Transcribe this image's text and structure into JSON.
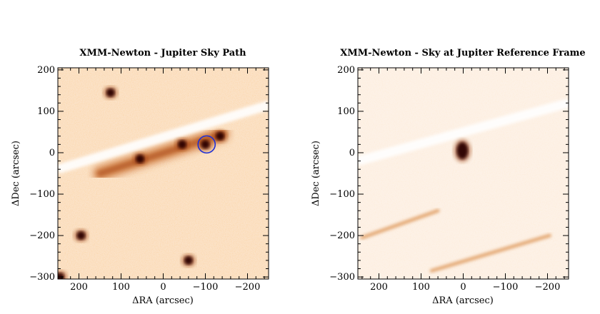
{
  "chart_data": [
    {
      "type": "heatmap",
      "title": "XMM-Newton - Jupiter Sky Path",
      "xlabel": "ΔRA (arcsec)",
      "ylabel": "ΔDec (arcsec)",
      "xlim": [
        250,
        -250
      ],
      "ylim": [
        -305,
        205
      ],
      "x_reversed": true,
      "xticks": [
        200,
        100,
        0,
        -100,
        -200
      ],
      "yticks": [
        200,
        100,
        0,
        -100,
        -200,
        -300
      ],
      "colormap": [
        "#ffffff",
        "#f7c79a",
        "#d9782e",
        "#6b1d05",
        "#200000"
      ],
      "jupiter_path": {
        "x1": 250,
        "y1": -40,
        "x2": -250,
        "y2": 115
      },
      "source_streak": {
        "x1": 150,
        "y1": -50,
        "x2": -140,
        "y2": 45
      },
      "sources": [
        {
          "x": 195,
          "y": -200
        },
        {
          "x": 125,
          "y": 145
        },
        {
          "x": -60,
          "y": -260
        },
        {
          "x": 55,
          "y": -15
        },
        {
          "x": -45,
          "y": 20
        },
        {
          "x": -100,
          "y": 20
        },
        {
          "x": -135,
          "y": 40
        },
        {
          "x": 245,
          "y": -300
        }
      ],
      "marker": {
        "x": -103,
        "y": 20,
        "r": 12,
        "color": "#1e2fd6"
      }
    },
    {
      "type": "heatmap",
      "title": "XMM-Newton - Sky at Jupiter Reference Frame",
      "xlabel": "ΔRA (arcsec)",
      "ylabel": "ΔDec (arcsec)",
      "xlim": [
        250,
        -250
      ],
      "ylim": [
        -305,
        205
      ],
      "x_reversed": true,
      "xticks": [
        200,
        100,
        0,
        -100,
        -200
      ],
      "yticks": [
        200,
        100,
        0,
        -100,
        -200,
        -300
      ],
      "colormap": [
        "#ffffff",
        "#f7c79a",
        "#d9782e",
        "#6b1d05",
        "#200000"
      ],
      "jupiter_path": {
        "x1": 250,
        "y1": -20,
        "x2": -250,
        "y2": 120
      },
      "sources": [
        {
          "x": 2,
          "y": 5
        }
      ],
      "streaks": [
        {
          "x1": 240,
          "y1": -205,
          "x2": 60,
          "y2": -140
        },
        {
          "x1": 75,
          "y1": -285,
          "x2": -205,
          "y2": -200
        }
      ]
    }
  ]
}
